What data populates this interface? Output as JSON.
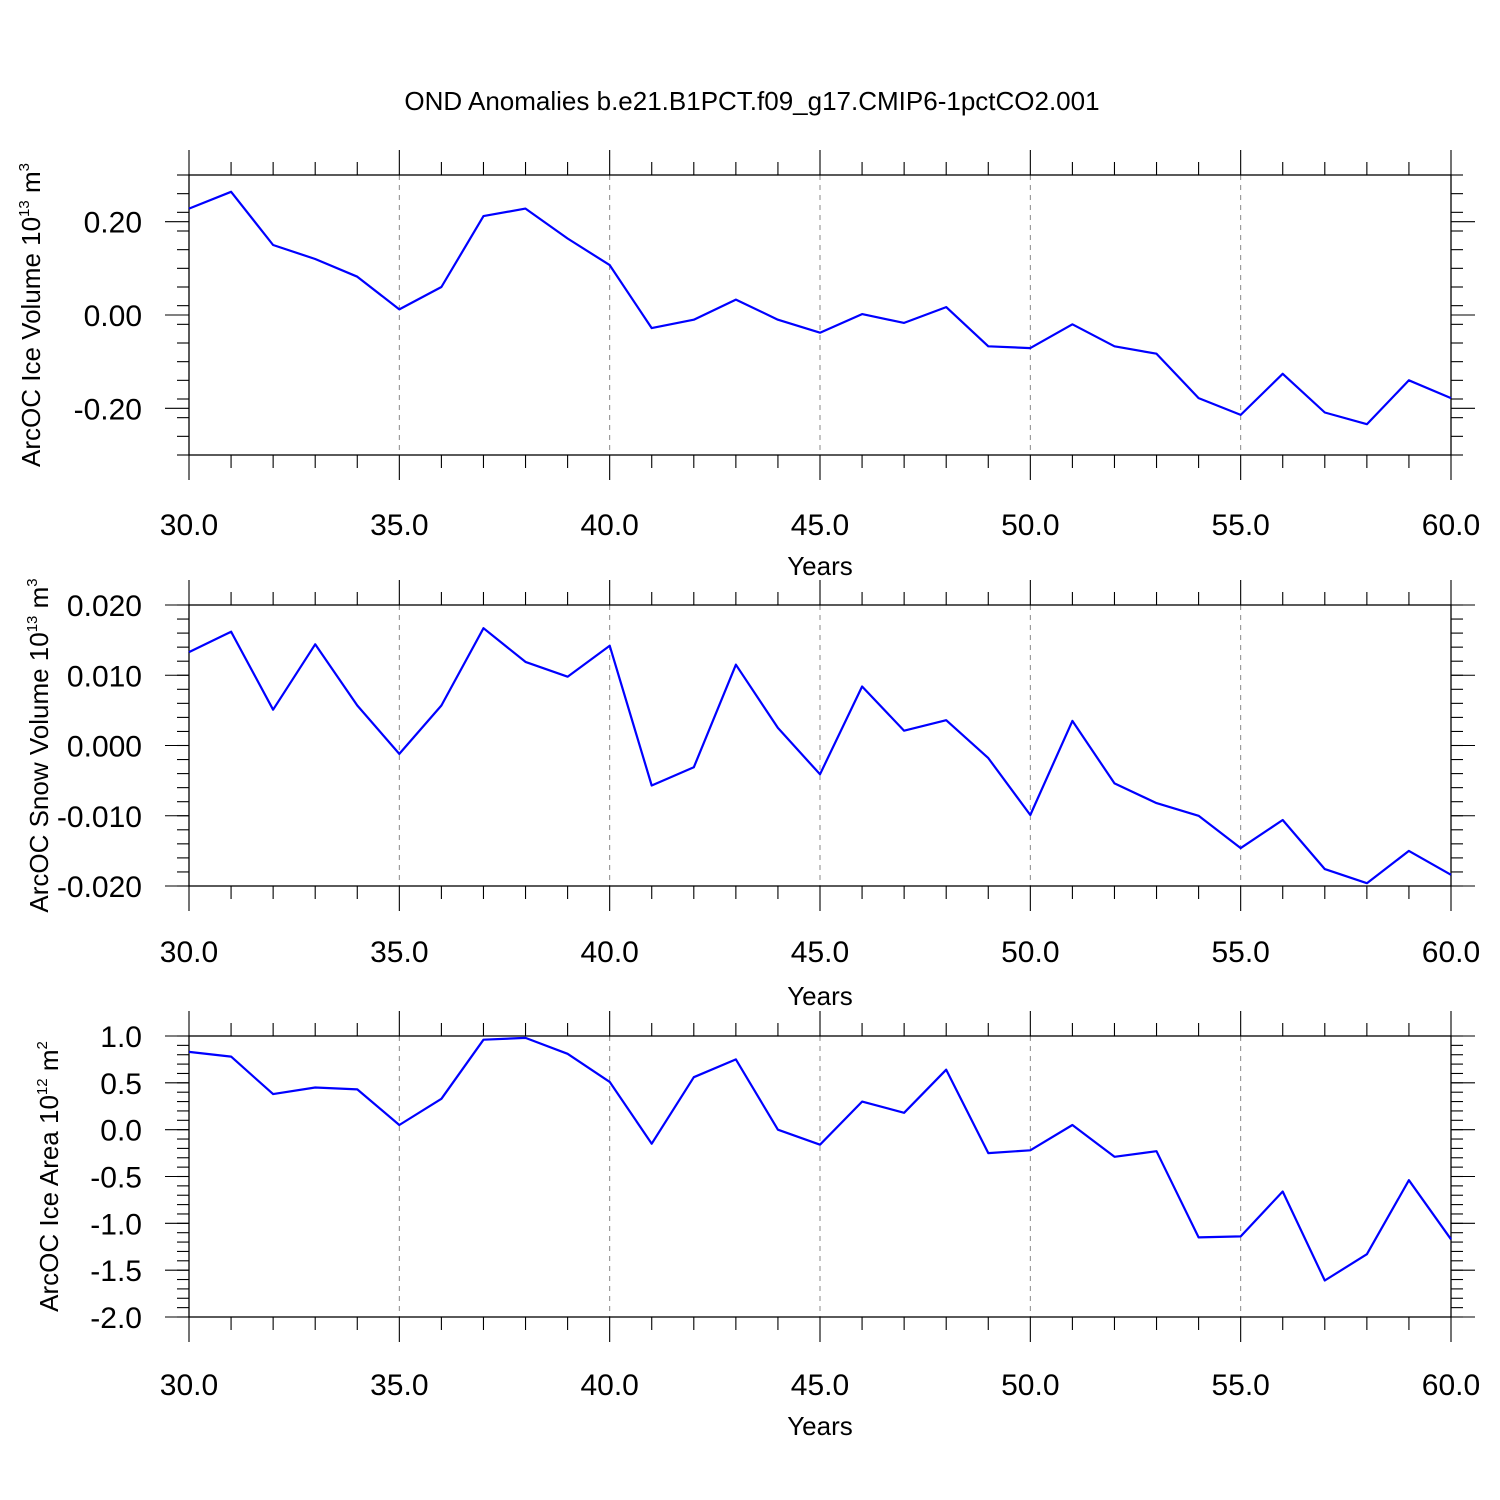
{
  "figure_title": "OND Anomalies b.e21.B1PCT.f09_g17.CMIP6-1pctCO2.001",
  "line_color": "#0000ff",
  "chart_data": [
    {
      "type": "line",
      "ylabel_main": "ArcOC Ice Volume 10",
      "ylabel_exp": "13",
      "ylabel_unit": " m",
      "ylabel_unit_exp": "3",
      "xlabel": "Years",
      "xlim": [
        30,
        60
      ],
      "ylim": [
        -0.3,
        0.3
      ],
      "y_major_ticks": [
        -0.2,
        0.0,
        0.2
      ],
      "y_tick_labels": [
        "-0.20",
        "0.00",
        "0.20"
      ],
      "y_minor_step": 0.04,
      "x_tick_labels": [
        "30.0",
        "35.0",
        "40.0",
        "45.0",
        "50.0",
        "55.0",
        "60.0"
      ],
      "grid": "x dashed",
      "x": [
        30,
        31,
        32,
        33,
        34,
        35,
        36,
        37,
        38,
        39,
        40,
        41,
        42,
        43,
        44,
        45,
        46,
        47,
        48,
        49,
        50,
        51,
        52,
        53,
        54,
        55,
        56,
        57,
        58,
        59,
        60
      ],
      "series": [
        {
          "values": [
            0.228,
            0.264,
            0.15,
            0.12,
            0.082,
            0.012,
            0.06,
            0.212,
            0.228,
            0.164,
            0.107,
            -0.028,
            -0.01,
            0.033,
            -0.01,
            -0.038,
            0.002,
            -0.017,
            0.017,
            -0.067,
            -0.071,
            -0.02,
            -0.067,
            -0.083,
            -0.178,
            -0.214,
            -0.126,
            -0.209,
            -0.234,
            -0.14,
            -0.178
          ]
        }
      ]
    },
    {
      "type": "line",
      "ylabel_main": "ArcOC Snow Volume 10",
      "ylabel_exp": "13",
      "ylabel_unit": " m",
      "ylabel_unit_exp": "3",
      "xlabel": "Years",
      "xlim": [
        30,
        60
      ],
      "ylim": [
        -0.02,
        0.02
      ],
      "y_major_ticks": [
        -0.02,
        -0.01,
        0.0,
        0.01,
        0.02
      ],
      "y_tick_labels": [
        "-0.020",
        "-0.010",
        "0.000",
        "0.010",
        "0.020"
      ],
      "y_minor_step": 0.002,
      "x_tick_labels": [
        "30.0",
        "35.0",
        "40.0",
        "45.0",
        "50.0",
        "55.0",
        "60.0"
      ],
      "grid": "x dashed",
      "x": [
        30,
        31,
        32,
        33,
        34,
        35,
        36,
        37,
        38,
        39,
        40,
        41,
        42,
        43,
        44,
        45,
        46,
        47,
        48,
        49,
        50,
        51,
        52,
        53,
        54,
        55,
        56,
        57,
        58,
        59,
        60
      ],
      "series": [
        {
          "values": [
            0.0133,
            0.0162,
            0.0051,
            0.0144,
            0.0057,
            -0.0012,
            0.0057,
            0.0167,
            0.0119,
            0.0098,
            0.0142,
            -0.0057,
            -0.0031,
            0.0115,
            0.0025,
            -0.0041,
            0.0084,
            0.0021,
            0.0036,
            -0.0018,
            -0.0099,
            0.0035,
            -0.0054,
            -0.0082,
            -0.01,
            -0.0146,
            -0.0106,
            -0.0176,
            -0.0196,
            -0.015,
            -0.0184
          ]
        }
      ]
    },
    {
      "type": "line",
      "ylabel_main": "ArcOC Ice Area 10",
      "ylabel_exp": "12",
      "ylabel_unit": " m",
      "ylabel_unit_exp": "2",
      "xlabel": "Years",
      "xlim": [
        30,
        60
      ],
      "ylim": [
        -2.0,
        1.0
      ],
      "y_major_ticks": [
        -2.0,
        -1.5,
        -1.0,
        -0.5,
        0.0,
        0.5,
        1.0
      ],
      "y_tick_labels": [
        "-2.0",
        "-1.5",
        "-1.0",
        "-0.5",
        "0.0",
        "0.5",
        "1.0"
      ],
      "y_minor_step": 0.1,
      "x_tick_labels": [
        "30.0",
        "35.0",
        "40.0",
        "45.0",
        "50.0",
        "55.0",
        "60.0"
      ],
      "grid": "x dashed",
      "x": [
        30,
        31,
        32,
        33,
        34,
        35,
        36,
        37,
        38,
        39,
        40,
        41,
        42,
        43,
        44,
        45,
        46,
        47,
        48,
        49,
        50,
        51,
        52,
        53,
        54,
        55,
        56,
        57,
        58,
        59,
        60
      ],
      "series": [
        {
          "values": [
            0.83,
            0.78,
            0.38,
            0.45,
            0.43,
            0.05,
            0.33,
            0.96,
            0.98,
            0.81,
            0.51,
            -0.15,
            0.56,
            0.75,
            0.0,
            -0.16,
            0.3,
            0.18,
            0.64,
            -0.25,
            -0.22,
            0.05,
            -0.29,
            -0.23,
            -1.15,
            -1.14,
            -0.66,
            -1.61,
            -1.33,
            -0.54,
            -1.17
          ]
        }
      ]
    }
  ]
}
